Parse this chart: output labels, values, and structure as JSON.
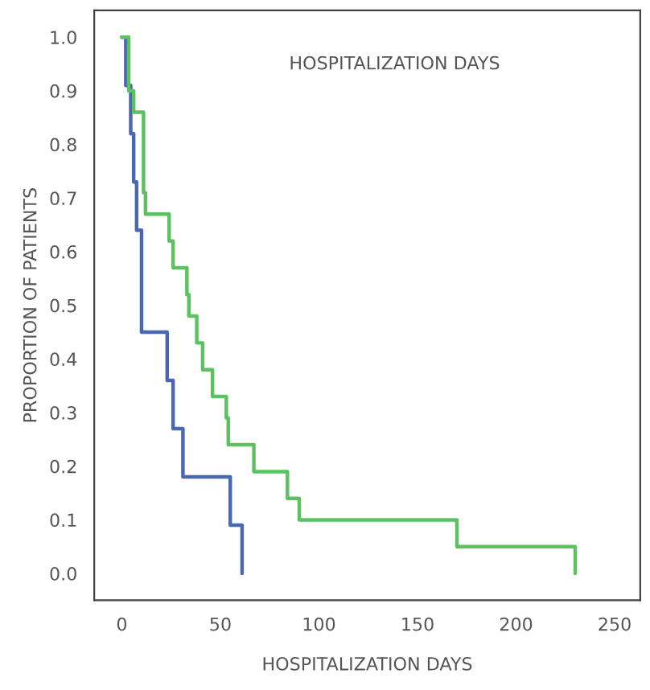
{
  "chart_data": {
    "type": "step",
    "xlabel": "HOSPITALIZATION DAYS",
    "ylabel": "PROPORTION OF PATIENTS",
    "annotations": [
      "HOSPITALIZATION DAYS"
    ],
    "xlim": [
      -14,
      263
    ],
    "ylim": [
      -0.05,
      1.05
    ],
    "xticks": [
      0,
      50,
      100,
      150,
      200,
      250
    ],
    "yticks": [
      {
        "value": 0,
        "label": "0.0"
      },
      {
        "value": 0.1,
        "label": "0.1"
      },
      {
        "value": 0.2,
        "label": "0.2"
      },
      {
        "value": 0.3,
        "label": "0.3"
      },
      {
        "value": 0.4,
        "label": "0.4"
      },
      {
        "value": 0.5,
        "label": "0.5"
      },
      {
        "value": 0.6,
        "label": "0.6"
      },
      {
        "value": 0.7,
        "label": "0.7"
      },
      {
        "value": 0.8,
        "label": "0.8"
      },
      {
        "value": 0.9,
        "label": "0.9"
      },
      {
        "value": 1,
        "label": "1.0"
      }
    ],
    "grid": false,
    "legend": false,
    "series": [
      {
        "color": "#4a68b0",
        "x": [
          0,
          2,
          4.5,
          6,
          7.5,
          10,
          23,
          26,
          31,
          55,
          61
        ],
        "values": [
          1,
          0.91,
          0.82,
          0.73,
          0.64,
          0.45,
          0.36,
          0.27,
          0.18,
          0.09,
          0
        ]
      },
      {
        "color": "#5cc160",
        "x": [
          0,
          3.5,
          6,
          11,
          12,
          24,
          26,
          33,
          34,
          38,
          41,
          46,
          53,
          54,
          67,
          84,
          90,
          170,
          230
        ],
        "values": [
          1,
          0.9,
          0.86,
          0.71,
          0.67,
          0.62,
          0.57,
          0.52,
          0.48,
          0.43,
          0.38,
          0.33,
          0.29,
          0.24,
          0.19,
          0.14,
          0.1,
          0.05,
          0
        ]
      }
    ]
  }
}
